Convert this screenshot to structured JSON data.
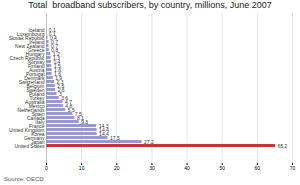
{
  "chart_data": {
    "type": "bar",
    "orientation": "horizontal",
    "title": "Total  broadband subscribers, by country, millions, June 2007",
    "source": "Source: OECD",
    "categories": [
      "United States",
      "Japan",
      "Germany",
      "Korea",
      "United Kingdom",
      "France",
      "Italy",
      "Canada",
      "Spain",
      "Netherlands",
      "Mexico",
      "Australia",
      "Turkey",
      "Poland",
      "Sweden",
      "Belgium",
      "Switzerland",
      "Denmark",
      "Portugal",
      "Austria",
      "Finland",
      "Norway",
      "Czech Republic",
      "Hungary",
      "Greece",
      "New Zealand",
      "Ireland",
      "Slovak Republic",
      "Luxembourg",
      "Iceland"
    ],
    "values": [
      65.2,
      27.2,
      17.5,
      14.4,
      14.4,
      14.3,
      9.3,
      8.1,
      7.5,
      5.5,
      4.8,
      4.7,
      3.6,
      3.0,
      2.6,
      2.5,
      2.3,
      1.9,
      1.6,
      1.6,
      1.5,
      1.4,
      1.3,
      1.2,
      0.8,
      0.7,
      0.7,
      0.4,
      0.1,
      0.1
    ],
    "colors": [
      "#cc3333",
      "#9999cc",
      "#9999cc",
      "#9999cc",
      "#9999cc",
      "#9999cc",
      "#9999cc",
      "#9999cc",
      "#9999cc",
      "#9999cc",
      "#9999cc",
      "#9999cc",
      "#9999cc",
      "#9999cc",
      "#9999cc",
      "#9999cc",
      "#9999cc",
      "#9999cc",
      "#9999cc",
      "#9999cc",
      "#9999cc",
      "#9999cc",
      "#9999cc",
      "#9999cc",
      "#9999cc",
      "#9999cc",
      "#9999cc",
      "#9999cc",
      "#9999cc",
      "#9999cc"
    ],
    "xlim": [
      0,
      70
    ],
    "xticks": [
      0,
      10,
      20,
      30,
      40,
      50,
      60,
      70
    ],
    "grid": true,
    "data_labels": true
  }
}
